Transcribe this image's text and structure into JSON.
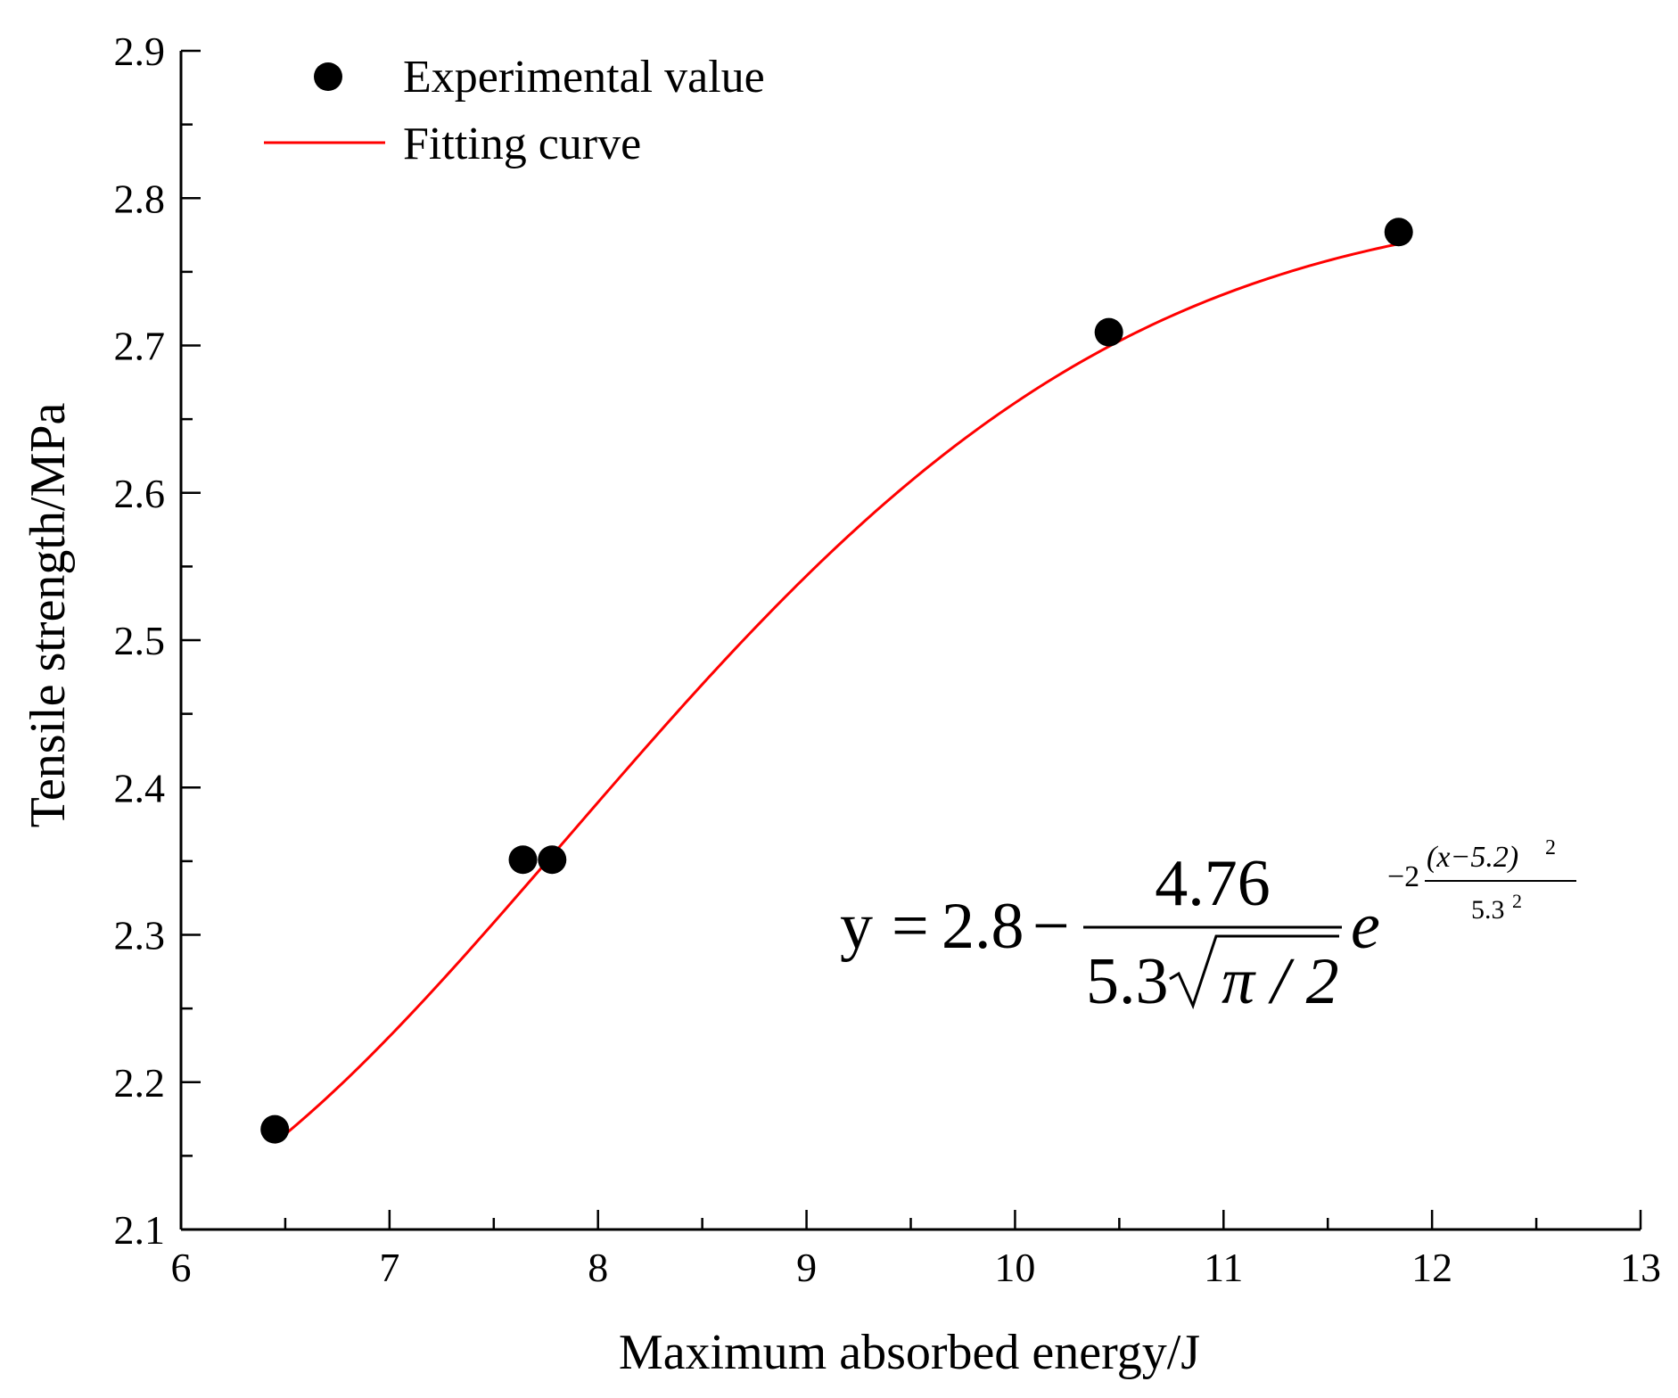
{
  "chart_data": {
    "type": "scatter",
    "title": "",
    "xlabel": "Maximum absorbed energy/J",
    "ylabel": "Tensile strength/MPa",
    "xlim": [
      6,
      13
    ],
    "ylim": [
      2.1,
      2.9
    ],
    "xticks": [
      6,
      7,
      8,
      9,
      10,
      11,
      12,
      13
    ],
    "yticks": [
      2.1,
      2.2,
      2.3,
      2.4,
      2.5,
      2.6,
      2.7,
      2.8,
      2.9
    ],
    "grid": false,
    "legend_position": "top-left",
    "series": [
      {
        "name": "Experimental value",
        "kind": "scatter",
        "color": "#000000",
        "points": [
          {
            "x": 6.45,
            "y": 2.168
          },
          {
            "x": 7.64,
            "y": 2.351
          },
          {
            "x": 7.78,
            "y": 2.351
          },
          {
            "x": 10.45,
            "y": 2.709
          },
          {
            "x": 11.84,
            "y": 2.777
          }
        ]
      },
      {
        "name": "Fitting curve",
        "kind": "line",
        "color": "#ff0000",
        "model": {
          "y0": 2.8,
          "A": 4.76,
          "w": 5.3,
          "xc": 5.2
        },
        "x_range": [
          6.45,
          11.84
        ]
      }
    ],
    "equation": {
      "lhs": "y",
      "eq": "=",
      "constant": "2.8",
      "minus": "−",
      "numerator": "4.76",
      "den_coef": "5.3",
      "den_sqrt": "π / 2",
      "base": "e",
      "exp_coef": "−2",
      "exp_num": "(x−5.2)",
      "exp_num_pow": "2",
      "exp_den": "5.3",
      "exp_den_pow": "2"
    }
  }
}
